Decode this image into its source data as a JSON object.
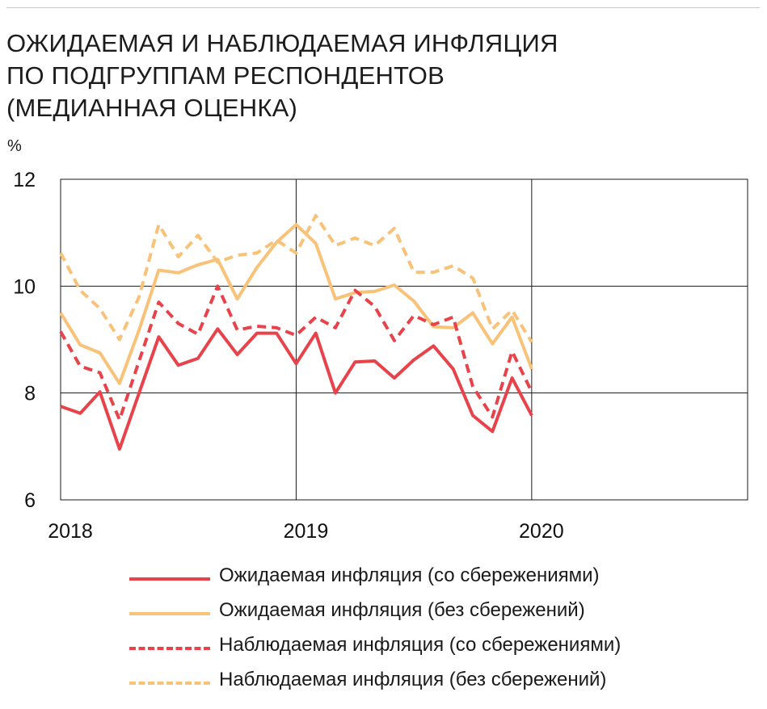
{
  "title_lines": [
    "ОЖИДАЕМАЯ И НАБЛЮДАЕМАЯ ИНФЛЯЦИЯ",
    "ПО ПОДГРУППАМ РЕСПОНДЕНТОВ",
    "(МЕДИАННАЯ ОЦЕНКА)"
  ],
  "unit_label": "%",
  "colors": {
    "red": "#e8434b",
    "orange": "#f8c279",
    "grid": "#1a1a1a",
    "rule": "#e2c98f"
  },
  "chart_data": {
    "type": "line",
    "ylim": [
      6,
      12
    ],
    "y_ticks": [
      "6",
      "8",
      "10",
      "12"
    ],
    "xlim": [
      "2018-01",
      "2020-12"
    ],
    "x_ticks": [
      "2018",
      "2019",
      "2020"
    ],
    "x": [
      "2018-01",
      "2018-02",
      "2018-03",
      "2018-04",
      "2018-05",
      "2018-06",
      "2018-07",
      "2018-08",
      "2018-09",
      "2018-10",
      "2018-11",
      "2018-12",
      "2019-01",
      "2019-02",
      "2019-03",
      "2019-04",
      "2019-05",
      "2019-06",
      "2019-07",
      "2019-08",
      "2019-09",
      "2019-10",
      "2019-11",
      "2019-12",
      "2020-01"
    ],
    "series": [
      {
        "name": "Ожидаемая инфляция (со сбережениями)",
        "color": "#e8434b",
        "dashed": false,
        "values": [
          7.75,
          7.62,
          8.02,
          6.95,
          8.0,
          9.05,
          8.52,
          8.65,
          9.2,
          8.72,
          9.12,
          9.12,
          8.55,
          9.12,
          8.0,
          8.58,
          8.6,
          8.28,
          8.62,
          8.88,
          8.45,
          7.58,
          7.28,
          8.28,
          7.58
        ]
      },
      {
        "name": "Ожидаемая инфляция (без сбережений)",
        "color": "#f8c279",
        "dashed": false,
        "values": [
          9.5,
          8.9,
          8.75,
          8.18,
          9.18,
          10.3,
          10.25,
          10.4,
          10.5,
          9.76,
          10.35,
          10.82,
          11.15,
          10.8,
          9.76,
          9.88,
          9.9,
          10.02,
          9.72,
          9.24,
          9.22,
          9.5,
          8.92,
          9.42,
          8.45
        ]
      },
      {
        "name": "Наблюдаемая инфляция (со сбережениями)",
        "color": "#e8434b",
        "dashed": true,
        "values": [
          9.15,
          8.5,
          8.38,
          7.5,
          8.6,
          9.7,
          9.3,
          9.1,
          10.0,
          9.18,
          9.25,
          9.22,
          9.08,
          9.42,
          9.22,
          9.92,
          9.62,
          8.98,
          9.45,
          9.28,
          9.42,
          8.12,
          7.55,
          8.78,
          8.02
        ]
      },
      {
        "name": "Наблюдаемая инфляция (без сбережений)",
        "color": "#f8c279",
        "dashed": true,
        "values": [
          10.62,
          9.92,
          9.58,
          9.0,
          9.8,
          11.15,
          10.55,
          10.95,
          10.45,
          10.58,
          10.62,
          10.86,
          10.62,
          11.32,
          10.76,
          10.9,
          10.76,
          11.08,
          10.26,
          10.26,
          10.38,
          10.15,
          9.2,
          9.55,
          8.95
        ]
      }
    ],
    "grid": true,
    "legend_position": "bottom"
  }
}
